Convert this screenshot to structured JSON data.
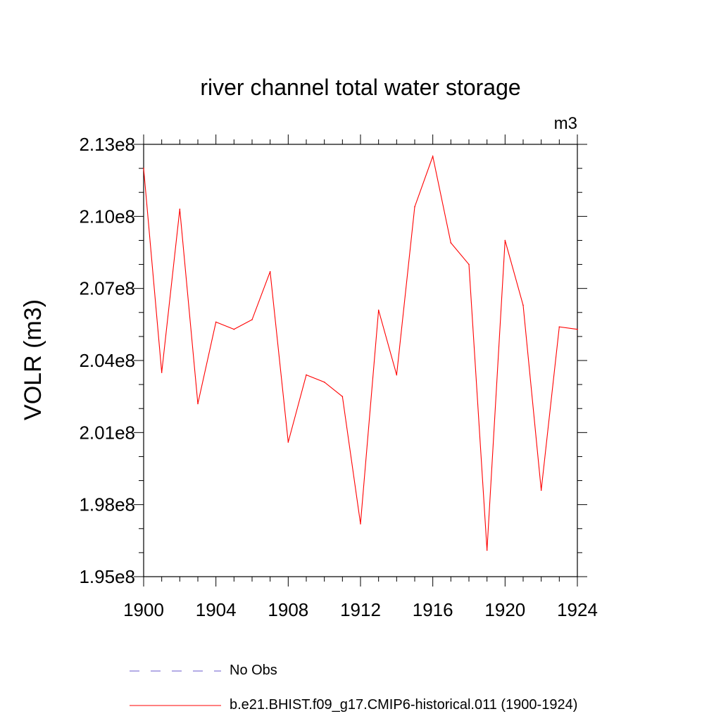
{
  "chart_data": {
    "type": "line",
    "title": "river channel total water storage",
    "units_label": "m3",
    "ylabel": "VOLR  (m3)",
    "xlabel": "",
    "xlim": [
      1900,
      1924
    ],
    "ylim": [
      195000000.0,
      213000000.0
    ],
    "x_ticks": [
      1900,
      1904,
      1908,
      1912,
      1916,
      1920,
      1924
    ],
    "x_tick_labels": [
      "1900",
      "1904",
      "1908",
      "1912",
      "1916",
      "1920",
      "1924"
    ],
    "y_ticks": [
      195000000.0,
      198000000.0,
      201000000.0,
      204000000.0,
      207000000.0,
      210000000.0,
      213000000.0
    ],
    "y_tick_labels": [
      "1.95e8",
      "1.98e8",
      "2.01e8",
      "2.04e8",
      "2.07e8",
      "2.10e8",
      "2.13e8"
    ],
    "grid": false,
    "legend_position": "bottom",
    "series": [
      {
        "name": "No Obs",
        "color": "#6a5acd",
        "style": "dashed",
        "x": [],
        "values": []
      },
      {
        "name": "b.e21.BHIST.f09_g17.CMIP6-historical.011 (1900-1924)",
        "color": "#ff0000",
        "style": "solid",
        "x": [
          1900,
          1901,
          1902,
          1903,
          1904,
          1905,
          1906,
          1907,
          1908,
          1909,
          1910,
          1911,
          1912,
          1913,
          1914,
          1915,
          1916,
          1917,
          1918,
          1919,
          1920,
          1921,
          1922,
          1923,
          1924
        ],
        "values": [
          212000000.0,
          203500000.0,
          210300000.0,
          202200000.0,
          205600000.0,
          205300000.0,
          205700000.0,
          207700000.0,
          200600000.0,
          203400000.0,
          203100000.0,
          202500000.0,
          197200000.0,
          206100000.0,
          203400000.0,
          210400000.0,
          212500000.0,
          208900000.0,
          208000000.0,
          196100000.0,
          209000000.0,
          206300000.0,
          198600000.0,
          205400000.0,
          205300000.0
        ]
      }
    ]
  }
}
